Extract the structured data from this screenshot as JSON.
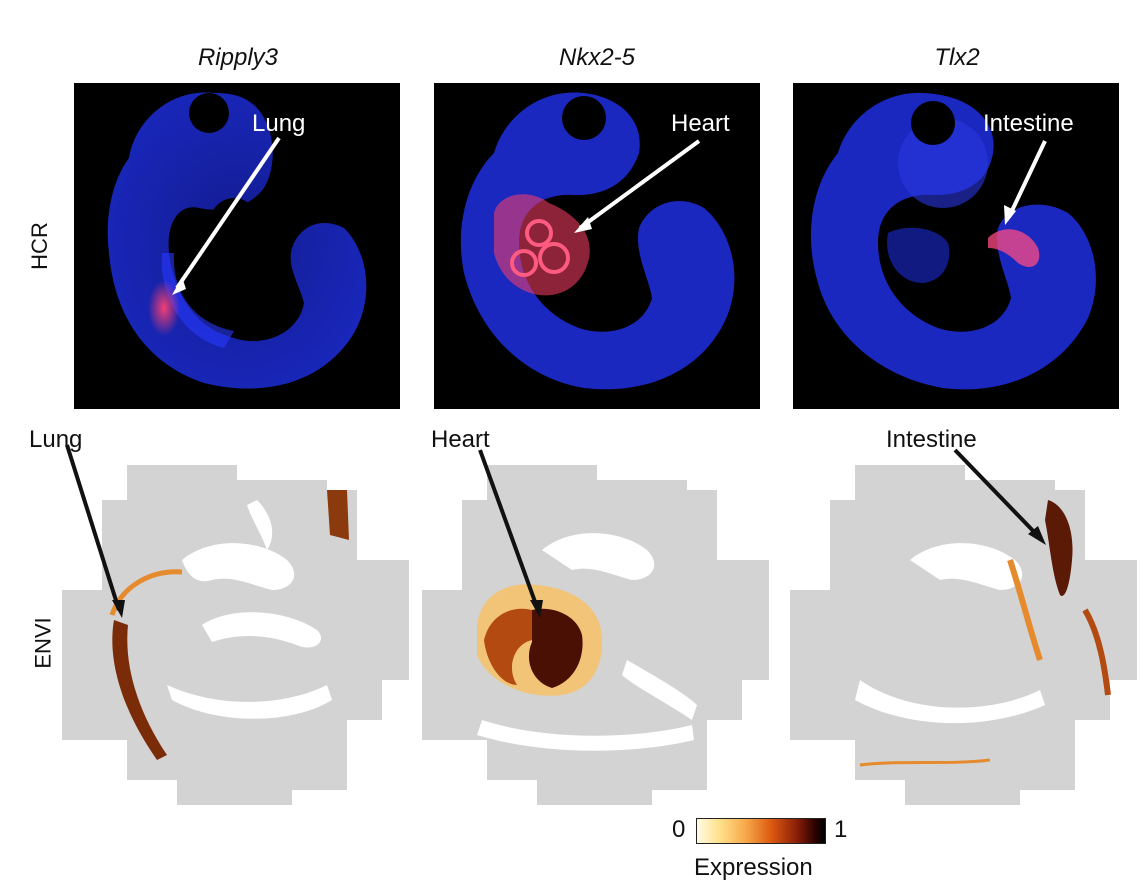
{
  "columns": [
    {
      "gene": "Ripply3",
      "hcr_label": "Lung",
      "envi_label": "Lung"
    },
    {
      "gene": "Nkx2-5",
      "hcr_label": "Heart",
      "envi_label": "Heart"
    },
    {
      "gene": "Tlx2",
      "hcr_label": "Intestine",
      "envi_label": "Intestine"
    }
  ],
  "rows": {
    "top": "HCR",
    "bottom": "ENVI"
  },
  "colorbar": {
    "min": "0",
    "max": "1",
    "title": "Expression"
  },
  "colors": {
    "hcr_background": "#000000",
    "hcr_tissue": "#1e2ad6",
    "hcr_signal": "#ff3060",
    "envi_background_cells": "#d4d4d4"
  }
}
